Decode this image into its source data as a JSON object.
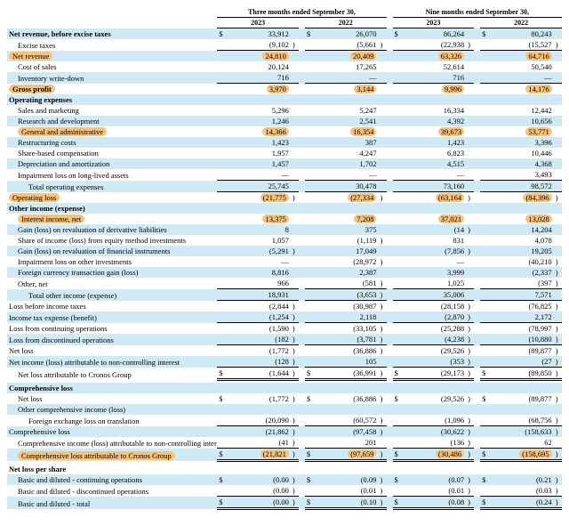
{
  "colors": {
    "stripe": "#cfe9f5",
    "highlight": "#f7c27a",
    "text": "#000000",
    "background": "#ffffff",
    "border": "#000000"
  },
  "typography": {
    "font_family": "Times New Roman",
    "base_fontsize_pt": 8.5,
    "header_fontsize_pt": 8
  },
  "headers": {
    "period1": "Three months ended September 30,",
    "period2": "Nine months ended September 30,",
    "y2023": "2023",
    "y2022": "2022"
  },
  "rows": [
    {
      "label": "Net revenue, before excise taxes",
      "bold": true,
      "stripe": true,
      "highlight": false,
      "indent": 0,
      "sym": "$",
      "v": [
        "33,912",
        "26,070",
        "86,264",
        "80,243"
      ],
      "p": [
        "",
        "",
        "",
        ""
      ],
      "totalTop": false,
      "dbl": false
    },
    {
      "label": "Excise taxes",
      "bold": false,
      "stripe": false,
      "highlight": false,
      "indent": 1,
      "sym": "",
      "v": [
        "(9,102",
        "(5,661",
        "(22,938",
        "(15,527"
      ],
      "p": [
        ")",
        ")",
        ")",
        ")"
      ],
      "totalTop": false,
      "dbl": false
    },
    {
      "label": "Net revenue",
      "bold": false,
      "stripe": true,
      "highlight": true,
      "indent": 0,
      "sym": "",
      "v": [
        "24,810",
        "20,409",
        "63,326",
        "64,716"
      ],
      "p": [
        "",
        "",
        "",
        ""
      ],
      "totalTop": true,
      "dbl": false
    },
    {
      "label": "Cost of sales",
      "bold": false,
      "stripe": false,
      "highlight": false,
      "indent": 1,
      "sym": "",
      "v": [
        "20,124",
        "17,265",
        "52,614",
        "50,540"
      ],
      "p": [
        "",
        "",
        "",
        ""
      ],
      "totalTop": false,
      "dbl": false
    },
    {
      "label": "Inventory write-down",
      "bold": false,
      "stripe": true,
      "highlight": false,
      "indent": 1,
      "sym": "",
      "v": [
        "716",
        "—",
        "716",
        "—"
      ],
      "p": [
        "",
        "",
        "",
        ""
      ],
      "totalTop": false,
      "dbl": false
    },
    {
      "label": "Gross profit",
      "bold": true,
      "stripe": false,
      "highlight": true,
      "indent": 0,
      "sym": "",
      "v": [
        "3,970",
        "3,144",
        "9,996",
        "14,176"
      ],
      "p": [
        "",
        "",
        "",
        ""
      ],
      "totalTop": true,
      "dbl": false
    },
    {
      "label": "Operating expenses",
      "bold": true,
      "stripe": true,
      "highlight": false,
      "indent": 0,
      "sym": "",
      "v": [
        "",
        "",
        "",
        ""
      ],
      "p": [
        "",
        "",
        "",
        ""
      ],
      "totalTop": false,
      "dbl": false
    },
    {
      "label": "Sales and marketing",
      "bold": false,
      "stripe": false,
      "highlight": false,
      "indent": 1,
      "sym": "",
      "v": [
        "5,296",
        "5,247",
        "16,334",
        "12,442"
      ],
      "p": [
        "",
        "",
        "",
        ""
      ],
      "totalTop": false,
      "dbl": false
    },
    {
      "label": "Research and development",
      "bold": false,
      "stripe": true,
      "highlight": false,
      "indent": 1,
      "sym": "",
      "v": [
        "1,246",
        "2,541",
        "4,392",
        "10,656"
      ],
      "p": [
        "",
        "",
        "",
        ""
      ],
      "totalTop": false,
      "dbl": false
    },
    {
      "label": "General and administrative",
      "bold": false,
      "stripe": false,
      "highlight": true,
      "indent": 1,
      "sym": "",
      "v": [
        "14,366",
        "16,354",
        "39,673",
        "53,771"
      ],
      "p": [
        "",
        "",
        "",
        ""
      ],
      "totalTop": false,
      "dbl": false
    },
    {
      "label": "Restructuring costs",
      "bold": false,
      "stripe": true,
      "highlight": false,
      "indent": 1,
      "sym": "",
      "v": [
        "1,423",
        "387",
        "1,423",
        "3,396"
      ],
      "p": [
        "",
        "",
        "",
        ""
      ],
      "totalTop": false,
      "dbl": false
    },
    {
      "label": "Share-based compensation",
      "bold": false,
      "stripe": false,
      "highlight": false,
      "indent": 1,
      "sym": "",
      "v": [
        "1,957",
        "4,247",
        "6,823",
        "10,446"
      ],
      "p": [
        "",
        "",
        "",
        ""
      ],
      "totalTop": false,
      "dbl": false
    },
    {
      "label": "Depreciation and amortization",
      "bold": false,
      "stripe": true,
      "highlight": false,
      "indent": 1,
      "sym": "",
      "v": [
        "1,457",
        "1,702",
        "4,515",
        "4,368"
      ],
      "p": [
        "",
        "",
        "",
        ""
      ],
      "totalTop": false,
      "dbl": false
    },
    {
      "label": "Impairment loss on long-lived assets",
      "bold": false,
      "stripe": false,
      "highlight": false,
      "indent": 1,
      "sym": "",
      "v": [
        "—",
        "—",
        "—",
        "3,493"
      ],
      "p": [
        "",
        "",
        "",
        ""
      ],
      "totalTop": false,
      "dbl": false
    },
    {
      "label": "Total operating expenses",
      "bold": false,
      "stripe": true,
      "highlight": false,
      "indent": 2,
      "sym": "",
      "v": [
        "25,745",
        "30,478",
        "73,160",
        "98,572"
      ],
      "p": [
        "",
        "",
        "",
        ""
      ],
      "totalTop": true,
      "dbl": false
    },
    {
      "label": "Operating loss",
      "bold": false,
      "stripe": false,
      "highlight": true,
      "indent": 0,
      "sym": "",
      "v": [
        "(21,775",
        "(27,334",
        "(63,164",
        "(84,396"
      ],
      "p": [
        ")",
        ")",
        ")",
        ")"
      ],
      "totalTop": true,
      "dbl": false
    },
    {
      "label": "Other income (expense)",
      "bold": true,
      "stripe": true,
      "highlight": false,
      "indent": 0,
      "sym": "",
      "v": [
        "",
        "",
        "",
        ""
      ],
      "p": [
        "",
        "",
        "",
        ""
      ],
      "totalTop": false,
      "dbl": false
    },
    {
      "label": "Interest income, net",
      "bold": false,
      "stripe": false,
      "highlight": true,
      "indent": 1,
      "sym": "",
      "v": [
        "13,375",
        "7,208",
        "37,021",
        "13,028"
      ],
      "p": [
        "",
        "",
        "",
        ""
      ],
      "totalTop": false,
      "dbl": false
    },
    {
      "label": "Gain (loss) on revaluation of derivative liabilities",
      "bold": false,
      "stripe": true,
      "highlight": false,
      "indent": 1,
      "sym": "",
      "v": [
        "8",
        "375",
        "(14",
        "14,204"
      ],
      "p": [
        "",
        "",
        ")",
        ""
      ],
      "totalTop": false,
      "dbl": false
    },
    {
      "label": "Share of income (loss) from equity method investments",
      "bold": false,
      "stripe": false,
      "highlight": false,
      "indent": 1,
      "sym": "",
      "v": [
        "1,057",
        "(1,119",
        "831",
        "4,078"
      ],
      "p": [
        "",
        ")",
        "",
        ""
      ],
      "totalTop": false,
      "dbl": false
    },
    {
      "label": "Gain (loss) on revaluation of financial instruments",
      "bold": false,
      "stripe": true,
      "highlight": false,
      "indent": 1,
      "sym": "",
      "v": [
        "(5,291",
        "17,049",
        "(7,856",
        "19,205"
      ],
      "p": [
        ")",
        "",
        ")",
        ""
      ],
      "totalTop": false,
      "dbl": false
    },
    {
      "label": "Impairment loss on other investments",
      "bold": false,
      "stripe": false,
      "highlight": false,
      "indent": 1,
      "sym": "",
      "v": [
        "—",
        "(28,972",
        "—",
        "(40,210"
      ],
      "p": [
        "",
        ")",
        "",
        ")"
      ],
      "totalTop": false,
      "dbl": false
    },
    {
      "label": "Foreign currency transaction gain (loss)",
      "bold": false,
      "stripe": true,
      "highlight": false,
      "indent": 1,
      "sym": "",
      "v": [
        "8,816",
        "2,387",
        "3,999",
        "(2,337"
      ],
      "p": [
        "",
        "",
        "",
        ")"
      ],
      "totalTop": false,
      "dbl": false
    },
    {
      "label": "Other, net",
      "bold": false,
      "stripe": false,
      "highlight": false,
      "indent": 1,
      "sym": "",
      "v": [
        "966",
        "(581",
        "1,025",
        "(397"
      ],
      "p": [
        "",
        ")",
        "",
        ")"
      ],
      "totalTop": false,
      "dbl": false
    },
    {
      "label": "Total other income (expense)",
      "bold": false,
      "stripe": true,
      "highlight": false,
      "indent": 2,
      "sym": "",
      "v": [
        "18,931",
        "(3,653",
        "35,006",
        "7,571"
      ],
      "p": [
        "",
        ")",
        "",
        ""
      ],
      "totalTop": true,
      "dbl": false
    },
    {
      "label": "Loss before income taxes",
      "bold": false,
      "stripe": false,
      "highlight": false,
      "indent": 0,
      "sym": "",
      "v": [
        "(2,844",
        "(30,987",
        "(28,158",
        "(76,825"
      ],
      "p": [
        ")",
        ")",
        ")",
        ")"
      ],
      "totalTop": true,
      "dbl": false
    },
    {
      "label": "Income tax expense (benefit)",
      "bold": false,
      "stripe": true,
      "highlight": false,
      "indent": 0,
      "sym": "",
      "v": [
        "(1,254",
        "2,118",
        "(2,870",
        "2,172"
      ],
      "p": [
        ")",
        "",
        ")",
        ""
      ],
      "totalTop": false,
      "dbl": false
    },
    {
      "label": "Loss from continuing operations",
      "bold": false,
      "stripe": false,
      "highlight": false,
      "indent": 0,
      "sym": "",
      "v": [
        "(1,590",
        "(33,105",
        "(25,288",
        "(78,997"
      ],
      "p": [
        ")",
        ")",
        ")",
        ")"
      ],
      "totalTop": true,
      "dbl": false
    },
    {
      "label": "Loss from discontinued operations",
      "bold": false,
      "stripe": true,
      "highlight": false,
      "indent": 0,
      "sym": "",
      "v": [
        "(182",
        "(3,781",
        "(4,238",
        "(10,880"
      ],
      "p": [
        ")",
        ")",
        ")",
        ")"
      ],
      "totalTop": false,
      "dbl": false
    },
    {
      "label": "Net loss",
      "bold": false,
      "stripe": false,
      "highlight": false,
      "indent": 0,
      "sym": "",
      "v": [
        "(1,772",
        "(36,886",
        "(29,526",
        "(89,877"
      ],
      "p": [
        ")",
        ")",
        ")",
        ")"
      ],
      "totalTop": true,
      "dbl": false
    },
    {
      "label": "Net income (loss) attributable to non-controlling interest",
      "bold": false,
      "stripe": true,
      "highlight": false,
      "indent": 0,
      "sym": "",
      "v": [
        "(128",
        "105",
        "(353",
        "(27"
      ],
      "p": [
        ")",
        "",
        ")",
        ")"
      ],
      "totalTop": false,
      "dbl": false
    },
    {
      "label": "Net loss attributable to Cronos Group",
      "bold": false,
      "stripe": false,
      "highlight": false,
      "indent": 1,
      "sym": "$",
      "v": [
        "(1,644",
        "(36,991",
        "(29,173",
        "(89,850"
      ],
      "p": [
        ")",
        ")",
        ")",
        ")"
      ],
      "totalTop": true,
      "dbl": true
    },
    {
      "label": "",
      "bold": false,
      "stripe": false,
      "highlight": false,
      "indent": 0,
      "sym": "",
      "v": [
        "",
        "",
        "",
        ""
      ],
      "p": [
        "",
        "",
        "",
        ""
      ],
      "totalTop": false,
      "dbl": false
    },
    {
      "label": "Comprehensive loss",
      "bold": true,
      "stripe": true,
      "highlight": false,
      "indent": 0,
      "sym": "",
      "v": [
        "",
        "",
        "",
        ""
      ],
      "p": [
        "",
        "",
        "",
        ""
      ],
      "totalTop": false,
      "dbl": false
    },
    {
      "label": "Net loss",
      "bold": false,
      "stripe": false,
      "highlight": false,
      "indent": 1,
      "sym": "$",
      "v": [
        "(1,772",
        "(36,886",
        "(29,526",
        "(89,877"
      ],
      "p": [
        ")",
        ")",
        ")",
        ")"
      ],
      "totalTop": false,
      "dbl": false
    },
    {
      "label": "Other comprehensive income (loss)",
      "bold": false,
      "stripe": true,
      "highlight": false,
      "indent": 1,
      "sym": "",
      "v": [
        "",
        "",
        "",
        ""
      ],
      "p": [
        "",
        "",
        "",
        ""
      ],
      "totalTop": false,
      "dbl": false
    },
    {
      "label": "Foreign exchange loss on translation",
      "bold": false,
      "stripe": false,
      "highlight": false,
      "indent": 2,
      "sym": "",
      "v": [
        "(20,090",
        "(60,572",
        "(1,096",
        "(68,756"
      ],
      "p": [
        ")",
        ")",
        ")",
        ")"
      ],
      "totalTop": false,
      "dbl": false
    },
    {
      "label": "Comprehensive loss",
      "bold": false,
      "stripe": true,
      "highlight": false,
      "indent": 0,
      "sym": "",
      "v": [
        "(21,862",
        "(97,458",
        "(30,622",
        "(158,633"
      ],
      "p": [
        ")",
        ")",
        ")",
        ")"
      ],
      "totalTop": true,
      "dbl": false
    },
    {
      "label": "Comprehensive income (loss) attributable to non-controlling interests",
      "bold": false,
      "stripe": false,
      "highlight": false,
      "indent": 1,
      "sym": "",
      "v": [
        "(41",
        "201",
        "(136",
        "62"
      ],
      "p": [
        ")",
        "",
        ")",
        ""
      ],
      "totalTop": false,
      "dbl": false
    },
    {
      "label": "Comprehensive loss attributable to Cronos Group",
      "bold": false,
      "stripe": true,
      "highlight": true,
      "indent": 1,
      "sym": "$",
      "v": [
        "(21,821",
        "(97,659",
        "(30,486",
        "(158,695"
      ],
      "p": [
        ")",
        ")",
        ")",
        ")"
      ],
      "totalTop": true,
      "dbl": true
    },
    {
      "label": "",
      "bold": false,
      "stripe": false,
      "highlight": false,
      "indent": 0,
      "sym": "",
      "v": [
        "",
        "",
        "",
        ""
      ],
      "p": [
        "",
        "",
        "",
        ""
      ],
      "totalTop": false,
      "dbl": false
    },
    {
      "label": "Net loss per share",
      "bold": true,
      "stripe": false,
      "highlight": false,
      "indent": 0,
      "sym": "",
      "v": [
        "",
        "",
        "",
        ""
      ],
      "p": [
        "",
        "",
        "",
        ""
      ],
      "totalTop": false,
      "dbl": false
    },
    {
      "label": "Basic and diluted - continuing operations",
      "bold": false,
      "stripe": true,
      "highlight": false,
      "indent": 1,
      "sym": "$",
      "v": [
        "(0.00",
        "(0.09",
        "(0.07",
        "(0.21"
      ],
      "p": [
        ")",
        ")",
        ")",
        ")"
      ],
      "totalTop": false,
      "dbl": false
    },
    {
      "label": "Basic and diluted - discontinued operations",
      "bold": false,
      "stripe": false,
      "highlight": false,
      "indent": 1,
      "sym": "",
      "v": [
        "(0.00",
        "(0.01",
        "(0.01",
        "(0.03"
      ],
      "p": [
        ")",
        ")",
        ")",
        ")"
      ],
      "totalTop": false,
      "dbl": false
    },
    {
      "label": "Basic and diluted - total",
      "bold": false,
      "stripe": true,
      "highlight": false,
      "indent": 1,
      "sym": "$",
      "v": [
        "(0.00",
        "(0.10",
        "(0.08",
        "(0.24"
      ],
      "p": [
        ")",
        ")",
        ")",
        ")"
      ],
      "totalTop": true,
      "dbl": true
    }
  ]
}
